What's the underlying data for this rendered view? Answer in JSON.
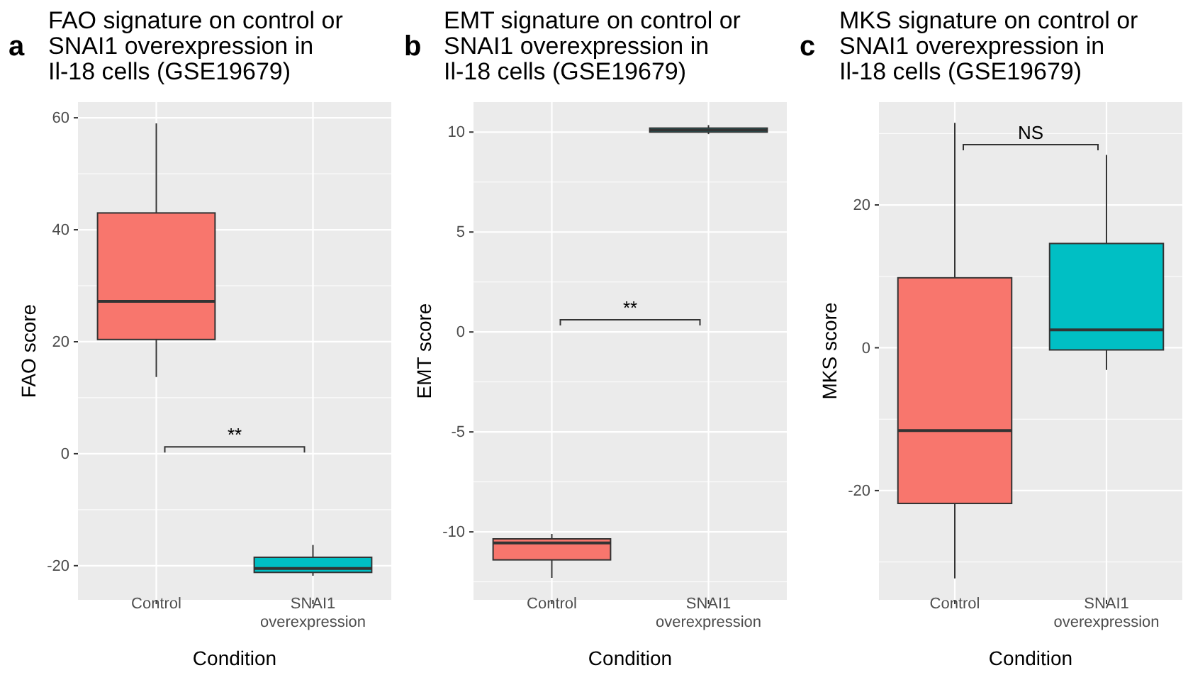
{
  "chart_data": [
    {
      "type": "box",
      "title": "FAO signature on control or SNAI1 overexpression in Il-18 cells (GSE19679)",
      "xlabel": "Condition",
      "ylabel": "FAO score",
      "categories": [
        "Control",
        "SNAI1 overexpression"
      ],
      "colors": [
        "#f8766d",
        "#00bfc4"
      ],
      "ylim": [
        -26.1,
        62.8
      ],
      "yticks": [
        -20,
        0,
        20,
        40,
        60
      ],
      "grid": true,
      "boxes": [
        {
          "low": 13.7,
          "q1": 20.4,
          "median": 27.2,
          "q3": 43,
          "high": 59
        },
        {
          "low": -21.8,
          "q1": -21.2,
          "median": -20.5,
          "q3": -18.5,
          "high": -16.3
        }
      ],
      "annotations": [
        "a",
        "**"
      ]
    },
    {
      "type": "box",
      "title": "EMT signature on control or SNAI1 overexpression in Il-18 cells (GSE19679)",
      "xlabel": "Condition",
      "ylabel": "EMT score",
      "categories": [
        "Control",
        "SNAI1 overexpression"
      ],
      "colors": [
        "#f8766d",
        "#00bfc4"
      ],
      "ylim": [
        -13.4,
        11.5
      ],
      "yticks": [
        -10,
        -5,
        0,
        5,
        10
      ],
      "grid": true,
      "boxes": [
        {
          "low": -12.3,
          "q1": -11.4,
          "median": -10.55,
          "q3": -10.35,
          "high": -10.1
        },
        {
          "low": 9.9,
          "q1": 10.0,
          "median": 10.1,
          "q3": 10.2,
          "high": 10.35
        }
      ],
      "annotations": [
        "b",
        "**"
      ]
    },
    {
      "type": "box",
      "title": "MKS signature on control or SNAI1 overexpression in Il-18 cells (GSE19679)",
      "xlabel": "Condition",
      "ylabel": "MKS score",
      "categories": [
        "Control",
        "SNAI1 overexpression"
      ],
      "colors": [
        "#f8766d",
        "#00bfc4"
      ],
      "ylim": [
        -35.3,
        34.4
      ],
      "yticks": [
        -20,
        0,
        20
      ],
      "grid": true,
      "boxes": [
        {
          "low": -32.3,
          "q1": -21.8,
          "median": -11.6,
          "q3": 9.8,
          "high": 31.5
        },
        {
          "low": -3.1,
          "q1": -0.3,
          "median": 2.5,
          "q3": 14.6,
          "high": 27
        }
      ],
      "annotations": [
        "c",
        "NS"
      ]
    }
  ]
}
